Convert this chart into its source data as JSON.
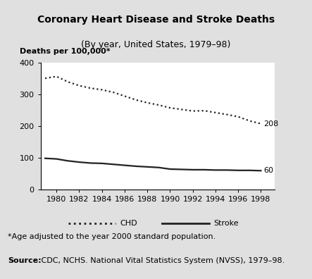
{
  "title": "Coronary Heart Disease and Stroke Deaths",
  "subtitle": "(By year, United States, 1979–98)",
  "ylabel": "Deaths per 100,000*",
  "footnote": "*Age adjusted to the year 2000 standard population.",
  "source_bold": "Source:",
  "source_normal": " CDC, NCHS. National Vital Statistics System (NVSS), 1979–98.",
  "years": [
    1979,
    1980,
    1981,
    1982,
    1983,
    1984,
    1985,
    1986,
    1987,
    1988,
    1989,
    1990,
    1991,
    1992,
    1993,
    1994,
    1995,
    1996,
    1997,
    1998
  ],
  "chd": [
    351,
    357,
    340,
    328,
    320,
    315,
    307,
    295,
    283,
    274,
    267,
    258,
    253,
    248,
    249,
    243,
    237,
    230,
    217,
    208
  ],
  "stroke": [
    99,
    97,
    91,
    87,
    84,
    83,
    80,
    77,
    74,
    72,
    70,
    65,
    64,
    63,
    63,
    62,
    62,
    61,
    61,
    60
  ],
  "chd_end_label": "208",
  "stroke_end_label": "60",
  "ylim": [
    0,
    400
  ],
  "yticks": [
    0,
    100,
    200,
    300,
    400
  ],
  "xticks": [
    1980,
    1982,
    1984,
    1986,
    1988,
    1990,
    1992,
    1994,
    1996,
    1998
  ],
  "line_color": "#222222",
  "bg_gray": "#e0e0e0",
  "bg_white": "#ffffff",
  "title_fontsize": 10,
  "subtitle_fontsize": 9,
  "axis_fontsize": 8,
  "label_fontsize": 8,
  "footnote_fontsize": 8,
  "source_fontsize": 8
}
